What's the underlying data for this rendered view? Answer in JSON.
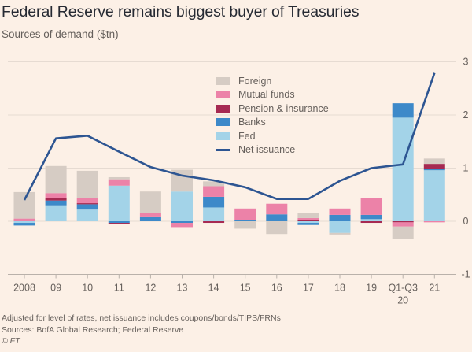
{
  "header": {
    "title": "Federal Reserve remains biggest buyer of Treasuries",
    "subtitle": "Sources of demand ($tn)"
  },
  "footer": {
    "note": "Adjusted for level of rates, net issuance includes coupons/bonds/TIPS/FRNs",
    "sources": "Sources: BofA Global Research; Federal Reserve",
    "copyright": "© FT"
  },
  "colors": {
    "background": "#fcf0e6",
    "Foreign": "#d6ccc4",
    "Mutual funds": "#ec82a8",
    "Pension & insurance": "#a62a52",
    "Banks": "#3d89c9",
    "Fed": "#a3d3e8",
    "Net issuance": "#2d5592",
    "grid": "#e6dbd2"
  },
  "chart_data": {
    "type": "bar",
    "stacked": true,
    "title": "Federal Reserve remains biggest buyer of Treasuries",
    "subtitle": "Sources of demand ($tn)",
    "xlabel": "",
    "ylabel": "",
    "ylim": [
      -1,
      3
    ],
    "yticks": [
      "3",
      "2",
      "1",
      "0",
      "-1"
    ],
    "ytick_values": [
      3,
      2,
      1,
      0,
      -1
    ],
    "y_axis_side": "right",
    "grid": true,
    "legend_placement": "top-center",
    "categories": [
      "2008",
      "09",
      "10",
      "11",
      "12",
      "13",
      "14",
      "15",
      "16",
      "17",
      "18",
      "19",
      "Q1-Q3\n20",
      "21"
    ],
    "category_lines": [
      [
        "2008"
      ],
      [
        "09"
      ],
      [
        "10"
      ],
      [
        "11"
      ],
      [
        "12"
      ],
      [
        "13"
      ],
      [
        "14"
      ],
      [
        "15"
      ],
      [
        "16"
      ],
      [
        "17"
      ],
      [
        "18"
      ],
      [
        "19"
      ],
      [
        "Q1-Q3",
        "20"
      ],
      [
        "21"
      ]
    ],
    "series": [
      {
        "name": "Fed",
        "kind": "bar",
        "values": [
          -0.03,
          0.3,
          0.22,
          0.67,
          0.0,
          0.56,
          0.26,
          0.0,
          0.0,
          -0.03,
          -0.22,
          0.04,
          1.95,
          0.96
        ]
      },
      {
        "name": "Banks",
        "kind": "bar",
        "values": [
          -0.05,
          0.09,
          0.1,
          -0.03,
          0.09,
          -0.03,
          0.2,
          0.02,
          0.13,
          -0.04,
          0.12,
          0.08,
          0.27,
          0.03
        ]
      },
      {
        "name": "Pension & insurance",
        "kind": "bar",
        "values": [
          0.0,
          0.04,
          0.02,
          -0.02,
          0.0,
          0.0,
          -0.03,
          0.0,
          0.0,
          0.02,
          0.0,
          -0.03,
          -0.02,
          0.09
        ]
      },
      {
        "name": "Mutual funds",
        "kind": "bar",
        "values": [
          0.05,
          0.1,
          0.09,
          0.12,
          0.06,
          -0.08,
          0.2,
          0.22,
          0.2,
          0.04,
          0.12,
          0.32,
          -0.08,
          -0.02
        ]
      },
      {
        "name": "Foreign",
        "kind": "bar",
        "values": [
          0.5,
          0.51,
          0.52,
          0.04,
          0.41,
          0.41,
          0.09,
          -0.14,
          -0.24,
          0.09,
          -0.03,
          0.0,
          -0.23,
          0.1
        ]
      },
      {
        "name": "Net issuance",
        "kind": "line",
        "values": [
          0.4,
          1.56,
          1.61,
          1.31,
          1.02,
          0.86,
          0.77,
          0.64,
          0.42,
          0.42,
          0.76,
          1.0,
          1.07,
          2.79
        ]
      }
    ],
    "legend": [
      "Foreign",
      "Mutual funds",
      "Pension & insurance",
      "Banks",
      "Fed",
      "Net issuance"
    ]
  }
}
